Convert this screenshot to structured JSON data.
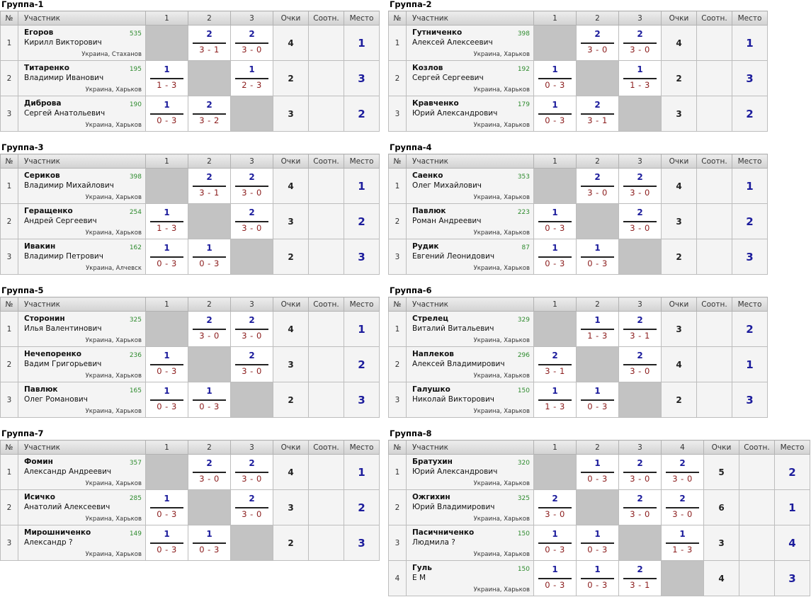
{
  "headers": {
    "num": "№",
    "participant": "Участник",
    "points": "Очки",
    "ratio": "Соотн.",
    "place": "Место"
  },
  "groups": [
    {
      "title": "Группа-1",
      "cols": [
        "1",
        "2",
        "3"
      ],
      "players": [
        {
          "n": "1",
          "surname": "Егоров",
          "name": "Кирилл Викторович",
          "rating": "535",
          "city": "Украина, Стаханов",
          "results": [
            null,
            {
              "p": "2",
              "s": "3 - 1"
            },
            {
              "p": "2",
              "s": "3 - 0"
            }
          ],
          "points": "4",
          "ratio": "",
          "place": "1"
        },
        {
          "n": "2",
          "surname": "Титаренко",
          "name": "Владимир Иванович",
          "rating": "195",
          "city": "Украина, Харьков",
          "results": [
            {
              "p": "1",
              "s": "1 - 3"
            },
            null,
            {
              "p": "1",
              "s": "2 - 3"
            }
          ],
          "points": "2",
          "ratio": "",
          "place": "3"
        },
        {
          "n": "3",
          "surname": "Диброва",
          "name": "Сергей Анатольевич",
          "rating": "190",
          "city": "Украина, Харьков",
          "results": [
            {
              "p": "1",
              "s": "0 - 3"
            },
            {
              "p": "2",
              "s": "3 - 2"
            },
            null
          ],
          "points": "3",
          "ratio": "",
          "place": "2"
        }
      ]
    },
    {
      "title": "Группа-2",
      "cols": [
        "1",
        "2",
        "3"
      ],
      "players": [
        {
          "n": "1",
          "surname": "Гутниченко",
          "name": "Алексей Алексеевич",
          "rating": "398",
          "city": "Украина, Харьков",
          "results": [
            null,
            {
              "p": "2",
              "s": "3 - 0"
            },
            {
              "p": "2",
              "s": "3 - 0"
            }
          ],
          "points": "4",
          "ratio": "",
          "place": "1"
        },
        {
          "n": "2",
          "surname": "Козлов",
          "name": "Сергей Сергеевич",
          "rating": "192",
          "city": "Украина, Харьков",
          "results": [
            {
              "p": "1",
              "s": "0 - 3"
            },
            null,
            {
              "p": "1",
              "s": "1 - 3"
            }
          ],
          "points": "2",
          "ratio": "",
          "place": "3"
        },
        {
          "n": "3",
          "surname": "Кравченко",
          "name": "Юрий Александрович",
          "rating": "179",
          "city": "Украина, Харьков",
          "results": [
            {
              "p": "1",
              "s": "0 - 3"
            },
            {
              "p": "2",
              "s": "3 - 1"
            },
            null
          ],
          "points": "3",
          "ratio": "",
          "place": "2"
        }
      ]
    },
    {
      "title": "Группа-3",
      "cols": [
        "1",
        "2",
        "3"
      ],
      "players": [
        {
          "n": "1",
          "surname": "Сериков",
          "name": "Владимир Михайлович",
          "rating": "398",
          "city": "Украина, Харьков",
          "results": [
            null,
            {
              "p": "2",
              "s": "3 - 1"
            },
            {
              "p": "2",
              "s": "3 - 0"
            }
          ],
          "points": "4",
          "ratio": "",
          "place": "1"
        },
        {
          "n": "2",
          "surname": "Геращенко",
          "name": "Андрей Сергеевич",
          "rating": "254",
          "city": "Украина, Харьков",
          "results": [
            {
              "p": "1",
              "s": "1 - 3"
            },
            null,
            {
              "p": "2",
              "s": "3 - 0"
            }
          ],
          "points": "3",
          "ratio": "",
          "place": "2"
        },
        {
          "n": "3",
          "surname": "Ивакин",
          "name": "Владимир Петрович",
          "rating": "162",
          "city": "Украина, Алчевск",
          "results": [
            {
              "p": "1",
              "s": "0 - 3"
            },
            {
              "p": "1",
              "s": "0 - 3"
            },
            null
          ],
          "points": "2",
          "ratio": "",
          "place": "3"
        }
      ]
    },
    {
      "title": "Группа-4",
      "cols": [
        "1",
        "2",
        "3"
      ],
      "players": [
        {
          "n": "1",
          "surname": "Саенко",
          "name": "Олег Михайлович",
          "rating": "353",
          "city": "Украина, Харьков",
          "results": [
            null,
            {
              "p": "2",
              "s": "3 - 0"
            },
            {
              "p": "2",
              "s": "3 - 0"
            }
          ],
          "points": "4",
          "ratio": "",
          "place": "1"
        },
        {
          "n": "2",
          "surname": "Павлюк",
          "name": "Роман Андреевич",
          "rating": "223",
          "city": "Украина, Харьков",
          "results": [
            {
              "p": "1",
              "s": "0 - 3"
            },
            null,
            {
              "p": "2",
              "s": "3 - 0"
            }
          ],
          "points": "3",
          "ratio": "",
          "place": "2"
        },
        {
          "n": "3",
          "surname": "Рудик",
          "name": "Евгений Леонидович",
          "rating": "87",
          "city": "Украина, Харьков",
          "results": [
            {
              "p": "1",
              "s": "0 - 3"
            },
            {
              "p": "1",
              "s": "0 - 3"
            },
            null
          ],
          "points": "2",
          "ratio": "",
          "place": "3"
        }
      ]
    },
    {
      "title": "Группа-5",
      "cols": [
        "1",
        "2",
        "3"
      ],
      "players": [
        {
          "n": "1",
          "surname": "Сторонин",
          "name": "Илья Валентинович",
          "rating": "325",
          "city": "Украина, Харьков",
          "results": [
            null,
            {
              "p": "2",
              "s": "3 - 0"
            },
            {
              "p": "2",
              "s": "3 - 0"
            }
          ],
          "points": "4",
          "ratio": "",
          "place": "1"
        },
        {
          "n": "2",
          "surname": "Нечепоренко",
          "name": "Вадим Григорьевич",
          "rating": "236",
          "city": "Украина, Харьков",
          "results": [
            {
              "p": "1",
              "s": "0 - 3"
            },
            null,
            {
              "p": "2",
              "s": "3 - 0"
            }
          ],
          "points": "3",
          "ratio": "",
          "place": "2"
        },
        {
          "n": "3",
          "surname": "Павлюк",
          "name": "Олег Романович",
          "rating": "165",
          "city": "Украина, Харьков",
          "results": [
            {
              "p": "1",
              "s": "0 - 3"
            },
            {
              "p": "1",
              "s": "0 - 3"
            },
            null
          ],
          "points": "2",
          "ratio": "",
          "place": "3"
        }
      ]
    },
    {
      "title": "Группа-6",
      "cols": [
        "1",
        "2",
        "3"
      ],
      "players": [
        {
          "n": "1",
          "surname": "Стрелец",
          "name": "Виталий Витальевич",
          "rating": "329",
          "city": "Украина, Харьков",
          "results": [
            null,
            {
              "p": "1",
              "s": "1 - 3"
            },
            {
              "p": "2",
              "s": "3 - 1"
            }
          ],
          "points": "3",
          "ratio": "",
          "place": "2"
        },
        {
          "n": "2",
          "surname": "Наплеков",
          "name": "Алексей Владимирович",
          "rating": "296",
          "city": "Украина, Харьков",
          "results": [
            {
              "p": "2",
              "s": "3 - 1"
            },
            null,
            {
              "p": "2",
              "s": "3 - 0"
            }
          ],
          "points": "4",
          "ratio": "",
          "place": "1"
        },
        {
          "n": "3",
          "surname": "Галушко",
          "name": "Николай Викторович",
          "rating": "150",
          "city": "Украина, Харьков",
          "results": [
            {
              "p": "1",
              "s": "1 - 3"
            },
            {
              "p": "1",
              "s": "0 - 3"
            },
            null
          ],
          "points": "2",
          "ratio": "",
          "place": "3"
        }
      ]
    },
    {
      "title": "Группа-7",
      "cols": [
        "1",
        "2",
        "3"
      ],
      "players": [
        {
          "n": "1",
          "surname": "Фомин",
          "name": "Александр Андреевич",
          "rating": "357",
          "city": "Украина, Харьков",
          "results": [
            null,
            {
              "p": "2",
              "s": "3 - 0"
            },
            {
              "p": "2",
              "s": "3 - 0"
            }
          ],
          "points": "4",
          "ratio": "",
          "place": "1"
        },
        {
          "n": "2",
          "surname": "Исичко",
          "name": "Анатолий Алексеевич",
          "rating": "285",
          "city": "Украина, Харьков",
          "results": [
            {
              "p": "1",
              "s": "0 - 3"
            },
            null,
            {
              "p": "2",
              "s": "3 - 0"
            }
          ],
          "points": "3",
          "ratio": "",
          "place": "2"
        },
        {
          "n": "3",
          "surname": "Мирошниченко",
          "name": "Александр ?",
          "rating": "149",
          "city": "Украина, Харьков",
          "results": [
            {
              "p": "1",
              "s": "0 - 3"
            },
            {
              "p": "1",
              "s": "0 - 3"
            },
            null
          ],
          "points": "2",
          "ratio": "",
          "place": "3"
        }
      ]
    },
    {
      "title": "Группа-8",
      "cols": [
        "1",
        "2",
        "3",
        "4"
      ],
      "players": [
        {
          "n": "1",
          "surname": "Братухин",
          "name": "Юрий Александрович",
          "rating": "320",
          "city": "Украина, Харьков",
          "results": [
            null,
            {
              "p": "1",
              "s": "0 - 3"
            },
            {
              "p": "2",
              "s": "3 - 0"
            },
            {
              "p": "2",
              "s": "3 - 0"
            }
          ],
          "points": "5",
          "ratio": "",
          "place": "2"
        },
        {
          "n": "2",
          "surname": "Ожгихин",
          "name": "Юрий Владимирович",
          "rating": "325",
          "city": "Украина, Харьков",
          "results": [
            {
              "p": "2",
              "s": "3 - 0"
            },
            null,
            {
              "p": "2",
              "s": "3 - 0"
            },
            {
              "p": "2",
              "s": "3 - 0"
            }
          ],
          "points": "6",
          "ratio": "",
          "place": "1"
        },
        {
          "n": "3",
          "surname": "Пасичниченко",
          "name": "Людмила ?",
          "rating": "150",
          "city": "Украина, Харьков",
          "results": [
            {
              "p": "1",
              "s": "0 - 3"
            },
            {
              "p": "1",
              "s": "0 - 3"
            },
            null,
            {
              "p": "1",
              "s": "1 - 3"
            }
          ],
          "points": "3",
          "ratio": "",
          "place": "4"
        },
        {
          "n": "4",
          "surname": "Гуль",
          "name": "Е М",
          "rating": "150",
          "city": "Украина, Харьков",
          "results": [
            {
              "p": "1",
              "s": "0 - 3"
            },
            {
              "p": "1",
              "s": "0 - 3"
            },
            {
              "p": "2",
              "s": "3 - 1"
            },
            null
          ],
          "points": "4",
          "ratio": "",
          "place": "3"
        }
      ]
    }
  ]
}
